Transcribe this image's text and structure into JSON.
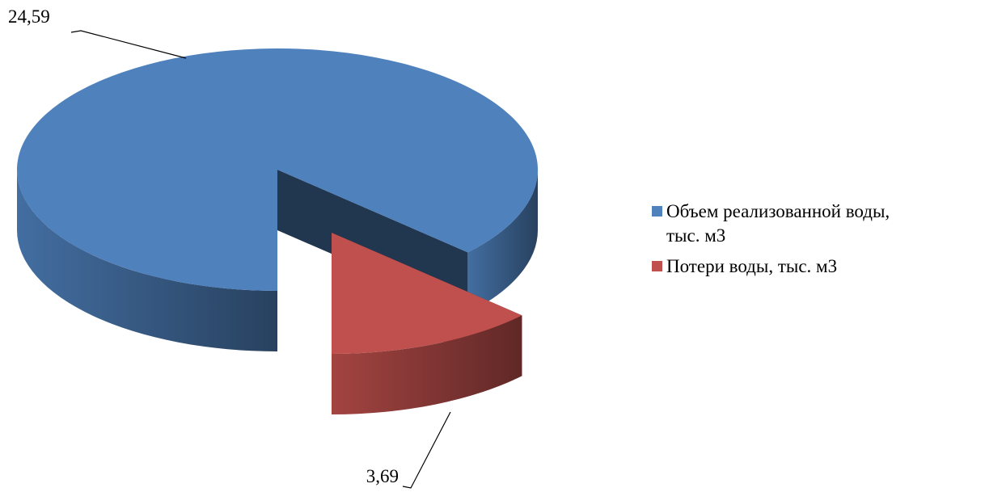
{
  "chart_data": {
    "type": "pie3d",
    "categories": [
      "Объем реализованной воды, тыс. м3",
      "Потери воды, тыс. м3"
    ],
    "values": [
      24.59,
      3.69
    ],
    "value_labels": [
      "24,59",
      "3,69"
    ],
    "colors": [
      "#4f81bd",
      "#c0504d"
    ],
    "legend": "right"
  }
}
